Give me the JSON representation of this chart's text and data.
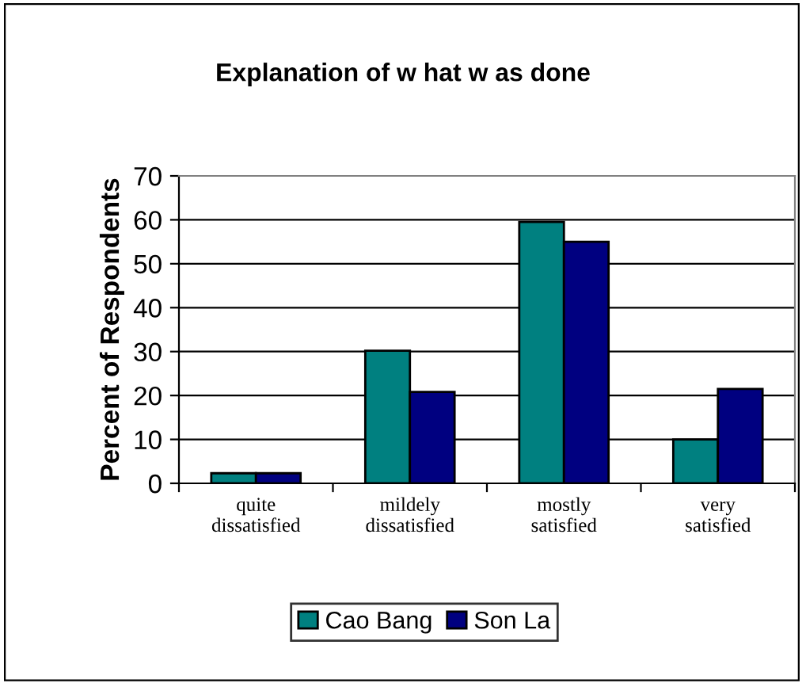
{
  "chart_data": {
    "type": "bar",
    "title": "Explanation of w hat w as done",
    "ylabel": "Percent of Respondents",
    "categories": [
      "quite\ndissatisfied",
      "mildely\ndissatisfied",
      "mostly\nsatisfied",
      "very\nsatisfied"
    ],
    "series": [
      {
        "name": "Cao Bang",
        "color": "#008080",
        "values": [
          2.3,
          30.2,
          59.5,
          10
        ]
      },
      {
        "name": "Son La",
        "color": "#000080",
        "values": [
          2.3,
          20.8,
          55,
          21.5
        ]
      }
    ],
    "ylim": [
      0,
      70
    ],
    "yticks": [
      0,
      10,
      20,
      30,
      40,
      50,
      60,
      70
    ],
    "grid": "y",
    "legend": "bottom"
  }
}
